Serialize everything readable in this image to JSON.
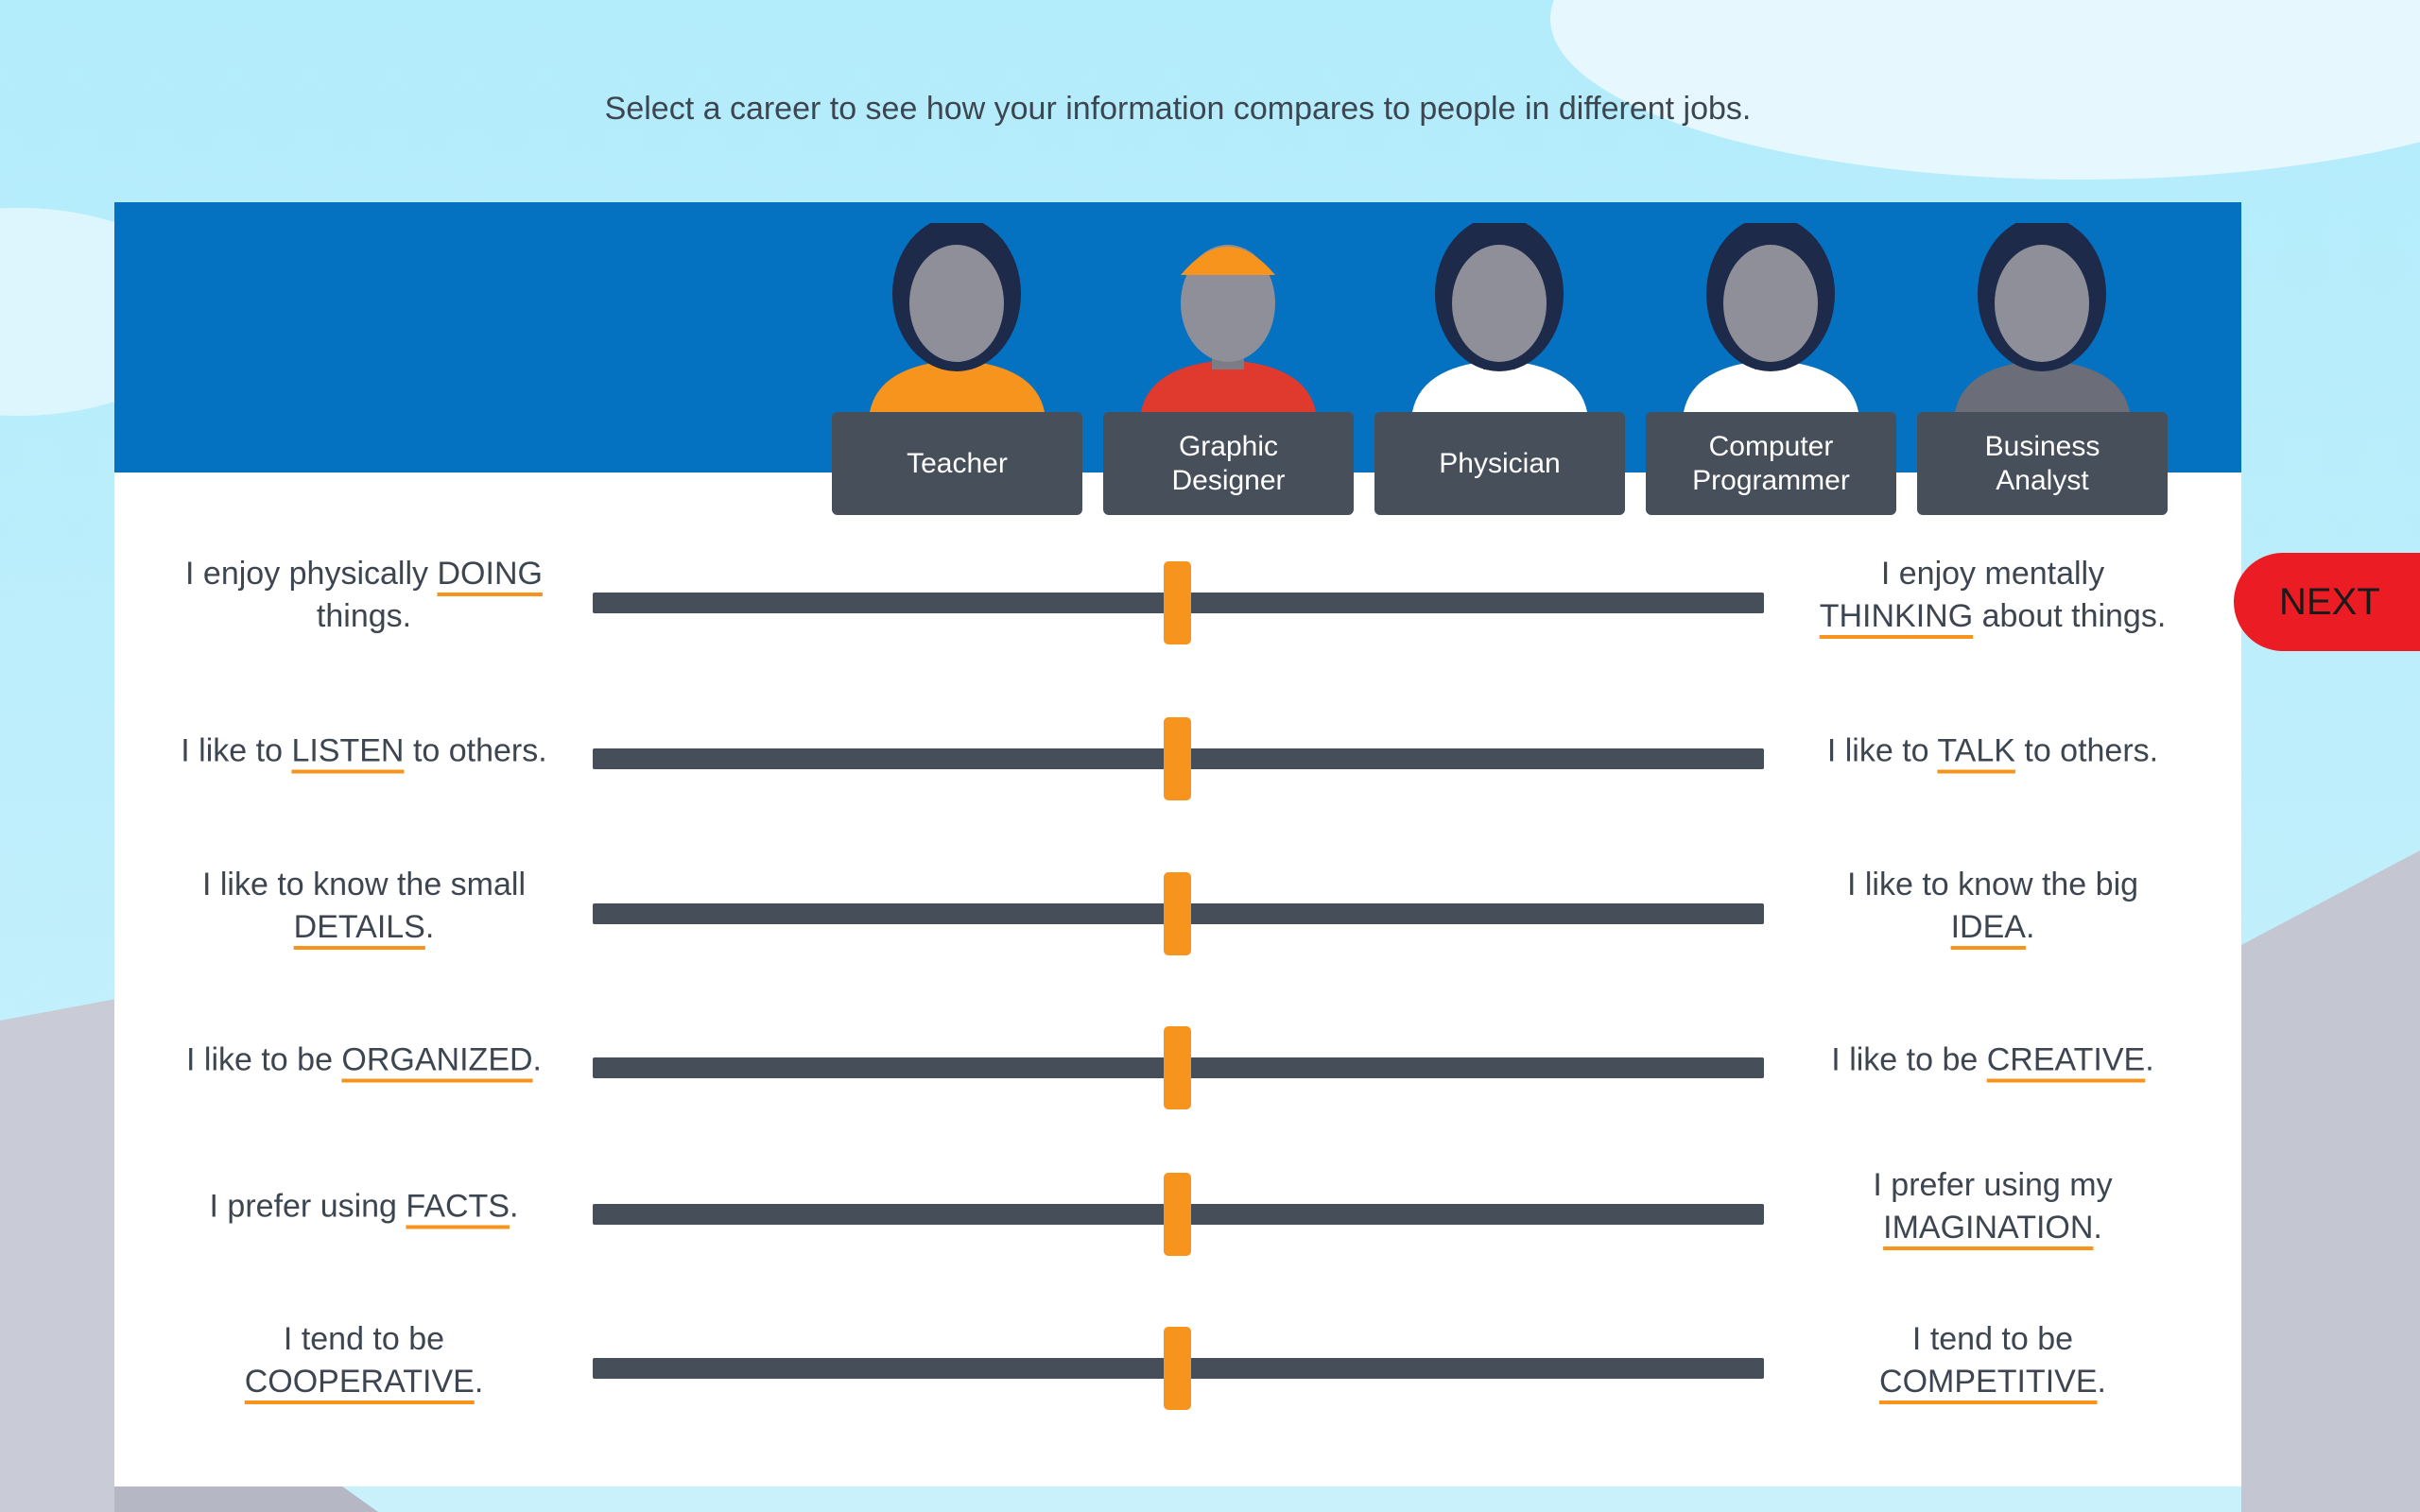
{
  "instruction": "Select a career to see how your information compares to people in different jobs.",
  "careers": [
    "Teacher",
    "Graphic Designer",
    "Physician",
    "Computer Programmer",
    "Business Analyst"
  ],
  "statements": [
    {
      "left": {
        "before": "I enjoy physically ",
        "keyword": "DOING",
        "after": " things."
      },
      "right": {
        "before": "I enjoy mentally ",
        "keyword": "THINKING",
        "after": " about things."
      }
    },
    {
      "left": {
        "before": "I like to ",
        "keyword": "LISTEN",
        "after": " to others."
      },
      "right": {
        "before": "I like to ",
        "keyword": "TALK",
        "after": " to others."
      }
    },
    {
      "left": {
        "before": "I like to know the small ",
        "keyword": "DETAILS",
        "after": "."
      },
      "right": {
        "before": "I like to know the big ",
        "keyword": "IDEA",
        "after": "."
      }
    },
    {
      "left": {
        "before": "I like to be ",
        "keyword": "ORGANIZED",
        "after": "."
      },
      "right": {
        "before": "I like to be ",
        "keyword": "CREATIVE",
        "after": "."
      }
    },
    {
      "left": {
        "before": "I prefer using ",
        "keyword": "FACTS",
        "after": "."
      },
      "right": {
        "before": "I prefer using my ",
        "keyword": "IMAGINATION",
        "after": "."
      }
    },
    {
      "left": {
        "before": "I tend to be ",
        "keyword": "COOPERATIVE",
        "after": "."
      },
      "right": {
        "before": "I tend to be ",
        "keyword": "COMPETITIVE",
        "after": "."
      }
    }
  ],
  "next_button": "NEXT"
}
